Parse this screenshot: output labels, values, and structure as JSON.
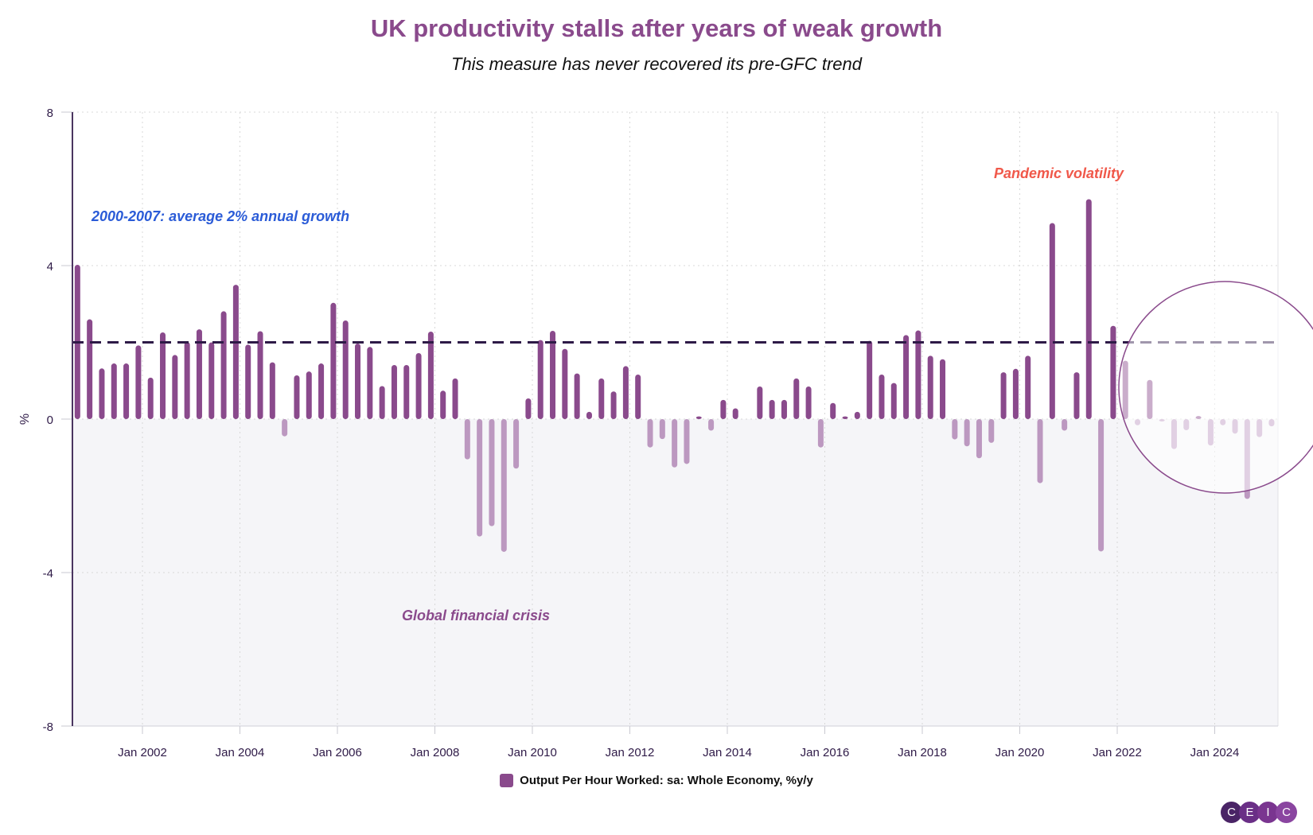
{
  "chart_data": {
    "type": "bar",
    "title": "UK productivity stalls after years of weak growth",
    "subtitle": "This measure has never recovered its pre-GFC trend",
    "ylabel": "%",
    "xlabel": "",
    "ylim": [
      -8,
      8
    ],
    "yticks": [
      "8",
      "4",
      "0",
      "-4",
      "-8"
    ],
    "ytick_values": [
      8,
      4,
      0,
      -4,
      -8
    ],
    "xticks": [
      "Jan 2002",
      "Jan 2004",
      "Jan 2006",
      "Jan 2008",
      "Jan 2010",
      "Jan 2012",
      "Jan 2014",
      "Jan 2016",
      "Jan 2018",
      "Jan 2020",
      "Jan 2022",
      "Jan 2024"
    ],
    "grid": true,
    "legend_position": "bottom",
    "series": [
      {
        "name": "Output Per Hour Worked: sa: Whole Economy, %y/y",
        "color": "#8a4a8c",
        "negative_color": "#bc98c0",
        "start": "2000-09",
        "frequency": "quarterly",
        "values": [
          4.02,
          2.6,
          1.32,
          1.45,
          1.45,
          1.92,
          1.08,
          2.26,
          1.67,
          2.01,
          2.34,
          2.0,
          2.81,
          3.5,
          1.94,
          2.29,
          1.48,
          -0.45,
          1.14,
          1.24,
          1.45,
          3.03,
          2.57,
          1.97,
          1.88,
          0.86,
          1.41,
          1.41,
          1.72,
          2.28,
          0.74,
          1.06,
          -1.05,
          -3.06,
          -2.79,
          -3.46,
          -1.29,
          0.54,
          2.06,
          2.3,
          1.83,
          1.19,
          0.19,
          1.06,
          0.72,
          1.38,
          1.16,
          -0.74,
          -0.52,
          -1.26,
          -1.17,
          0.07,
          -0.3,
          0.5,
          0.28,
          0,
          0.85,
          0.5,
          0.5,
          1.06,
          0.85,
          -0.74,
          0.42,
          0.07,
          0.19,
          2.04,
          1.16,
          0.94,
          2.19,
          2.31,
          1.65,
          1.56,
          -0.53,
          -0.71,
          -1.02,
          -0.62,
          1.22,
          1.31,
          1.65,
          -1.67,
          5.11,
          -0.3,
          1.22,
          5.73,
          -3.45,
          2.43,
          1.52,
          -0.16,
          1.02,
          -0.06,
          -0.78,
          -0.29,
          0.08,
          -0.69,
          -0.16,
          -0.38,
          -2.08,
          -0.47,
          -0.19
        ]
      }
    ],
    "reference_line": {
      "value": 2,
      "style": "dashed",
      "color": "#2e1a47"
    },
    "annotations": [
      {
        "text": "2000-2007: average 2% annual growth",
        "color": "#2a5bd7"
      },
      {
        "text": "Pandemic volatility",
        "color": "#f0584a"
      },
      {
        "text": "Global financial crisis",
        "color": "#8a4a8c"
      }
    ],
    "highlight": {
      "shape": "circle",
      "around": "2022-2025"
    }
  },
  "logo": {
    "letters": [
      "C",
      "E",
      "I",
      "C"
    ]
  }
}
